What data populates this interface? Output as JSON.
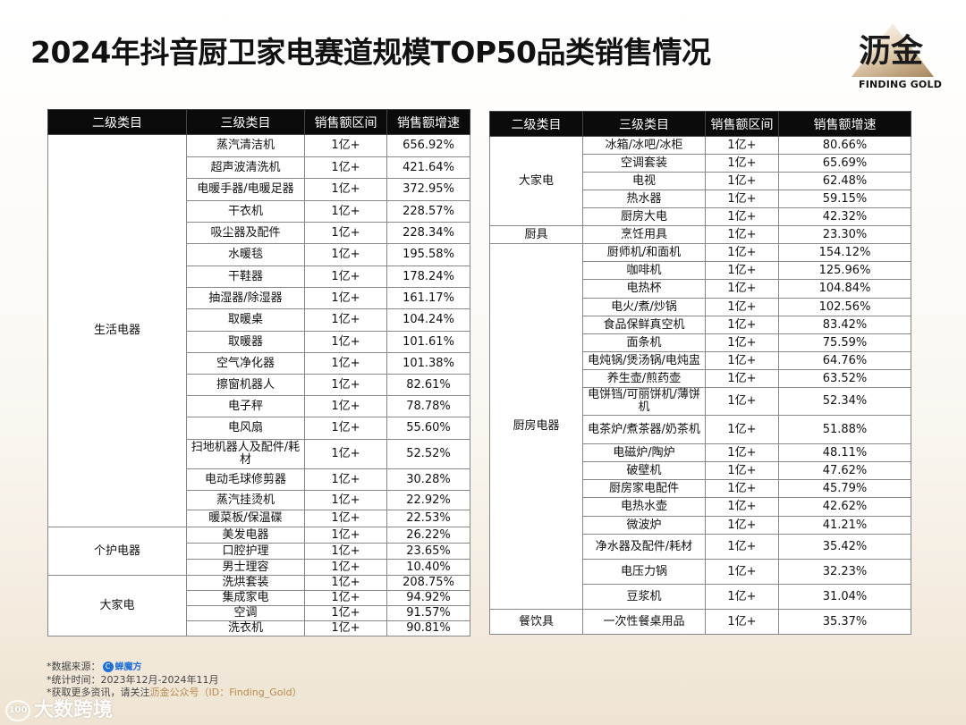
{
  "title": "2024年抖音厨卫家电赛道规模TOP50品类销售情况",
  "logo": {
    "cn": "沥金",
    "en": "FINDING GOLD"
  },
  "headers": [
    "二级类目",
    "三级类目",
    "销售额区间",
    "销售额增速"
  ],
  "left_table": {
    "groups": [
      {
        "name": "生活电器",
        "rows": [
          [
            "蒸汽清洁机",
            "1亿+",
            "656.92%"
          ],
          [
            "超声波清洗机",
            "1亿+",
            "421.64%"
          ],
          [
            "电暖手器/电暖足器",
            "1亿+",
            "372.95%"
          ],
          [
            "干衣机",
            "1亿+",
            "228.57%"
          ],
          [
            "吸尘器及配件",
            "1亿+",
            "228.34%"
          ],
          [
            "水暖毯",
            "1亿+",
            "195.58%"
          ],
          [
            "干鞋器",
            "1亿+",
            "178.24%"
          ],
          [
            "抽湿器/除湿器",
            "1亿+",
            "161.17%"
          ],
          [
            "取暖桌",
            "1亿+",
            "104.24%"
          ],
          [
            "取暖器",
            "1亿+",
            "101.61%"
          ],
          [
            "空气净化器",
            "1亿+",
            "101.38%"
          ],
          [
            "擦窗机器人",
            "1亿+",
            "82.61%"
          ],
          [
            "电子秤",
            "1亿+",
            "78.78%"
          ],
          [
            "电风扇",
            "1亿+",
            "55.60%"
          ],
          [
            "扫地机器人及配件/耗材",
            "1亿+",
            "52.52%"
          ],
          [
            "电动毛球修剪器",
            "1亿+",
            "30.28%"
          ],
          [
            "蒸汽挂烫机",
            "1亿+",
            "22.92%"
          ],
          [
            "暖菜板/保温碟",
            "1亿+",
            "22.53%"
          ]
        ]
      },
      {
        "name": "个护电器",
        "rows": [
          [
            "美发电器",
            "1亿+",
            "26.22%"
          ],
          [
            "口腔护理",
            "1亿+",
            "23.65%"
          ],
          [
            "男士理容",
            "1亿+",
            "10.40%"
          ]
        ]
      },
      {
        "name": "大家电",
        "rows": [
          [
            "洗烘套装",
            "1亿+",
            "208.75%"
          ],
          [
            "集成家电",
            "1亿+",
            "94.92%"
          ],
          [
            "空调",
            "1亿+",
            "91.57%"
          ],
          [
            "洗衣机",
            "1亿+",
            "90.81%"
          ]
        ]
      }
    ]
  },
  "right_table": {
    "groups": [
      {
        "name": "大家电",
        "rows": [
          [
            "冰箱/冰吧/冰柜",
            "1亿+",
            "80.66%"
          ],
          [
            "空调套装",
            "1亿+",
            "65.69%"
          ],
          [
            "电视",
            "1亿+",
            "62.48%"
          ],
          [
            "热水器",
            "1亿+",
            "59.15%"
          ],
          [
            "厨房大电",
            "1亿+",
            "42.32%"
          ]
        ]
      },
      {
        "name": "厨具",
        "rows": [
          [
            "烹饪用具",
            "1亿+",
            "23.30%"
          ]
        ]
      },
      {
        "name": "厨房电器",
        "rows": [
          [
            "厨师机/和面机",
            "1亿+",
            "154.12%"
          ],
          [
            "咖啡机",
            "1亿+",
            "125.96%"
          ],
          [
            "电热杯",
            "1亿+",
            "104.84%"
          ],
          [
            "电火/煮/炒锅",
            "1亿+",
            "102.56%"
          ],
          [
            "食品保鲜真空机",
            "1亿+",
            "83.42%"
          ],
          [
            "面条机",
            "1亿+",
            "75.59%"
          ],
          [
            "电炖锅/煲汤锅/电炖盅",
            "1亿+",
            "64.76%"
          ],
          [
            "养生壶/煎药壶",
            "1亿+",
            "63.52%"
          ],
          [
            "电饼铛/可丽饼机/薄饼机",
            "1亿+",
            "52.34%"
          ],
          [
            "电茶炉/煮茶器/奶茶机",
            "1亿+",
            "51.88%"
          ],
          [
            "电磁炉/陶炉",
            "1亿+",
            "48.11%"
          ],
          [
            "破壁机",
            "1亿+",
            "47.62%"
          ],
          [
            "厨房家电配件",
            "1亿+",
            "45.79%"
          ],
          [
            "电热水壶",
            "1亿+",
            "42.62%"
          ],
          [
            "微波炉",
            "1亿+",
            "41.21%"
          ],
          [
            "净水器及配件/耗材",
            "1亿+",
            "35.42%"
          ],
          [
            "电压力锅",
            "1亿+",
            "32.23%"
          ],
          [
            "豆浆机",
            "1亿+",
            "31.04%"
          ]
        ]
      },
      {
        "name": "餐饮具",
        "rows": [
          [
            "一次性餐桌用品",
            "1亿+",
            "35.37%"
          ]
        ]
      }
    ]
  },
  "footer": {
    "source_label": "*数据来源：",
    "source_name": "蝉魔方",
    "period": "*统计时间：2023年12月-2024年11月",
    "more_prefix": "*获取更多资讯，请关注",
    "more_highlight": "沥金公众号（ID：Finding_Gold）"
  },
  "watermark": "大数跨境"
}
